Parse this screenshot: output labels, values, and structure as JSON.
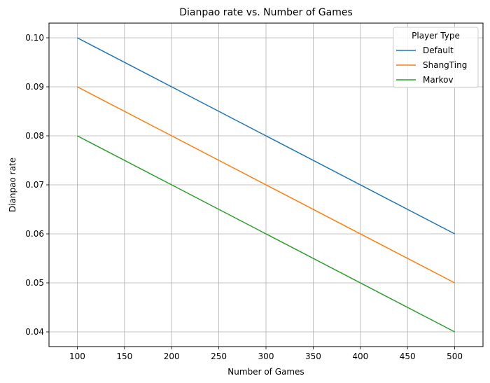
{
  "chart_data": {
    "type": "line",
    "title": "Dianpao rate vs. Number of Games",
    "xlabel": "Number of Games",
    "ylabel": "Dianpao rate",
    "x": [
      100,
      500
    ],
    "series": [
      {
        "name": "Default",
        "color": "#1f77b4",
        "values": [
          0.1,
          0.06
        ]
      },
      {
        "name": "ShangTing",
        "color": "#ff7f0e",
        "values": [
          0.09,
          0.05
        ]
      },
      {
        "name": "Markov",
        "color": "#2ca02c",
        "values": [
          0.08,
          0.04
        ]
      }
    ],
    "xlim": [
      70,
      530
    ],
    "ylim": [
      0.037,
      0.103
    ],
    "xticks": [
      100,
      150,
      200,
      250,
      300,
      350,
      400,
      450,
      500
    ],
    "yticks": [
      0.04,
      0.05,
      0.06,
      0.07,
      0.08,
      0.09,
      0.1
    ],
    "ytick_labels": [
      "0.04",
      "0.05",
      "0.06",
      "0.07",
      "0.08",
      "0.09",
      "0.10"
    ],
    "grid": true,
    "legend": {
      "title": "Player Type",
      "position": "top-right"
    }
  }
}
